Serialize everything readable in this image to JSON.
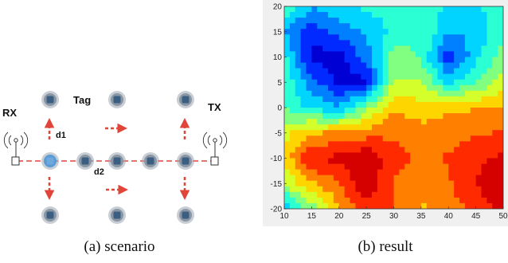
{
  "scenario": {
    "rx_label": "RX",
    "tx_label": "TX",
    "tag_label": "Tag",
    "d1_label": "d1",
    "d2_label": "d2",
    "caption": "(a) scenario",
    "colors": {
      "dash": "#e0453a",
      "tag_fill": "#3a5f82",
      "tag_halo": "#9aa5b0",
      "selected": "#5b9bd5"
    }
  },
  "result": {
    "caption": "(b) result",
    "x_ticks": [
      "10",
      "15",
      "20",
      "25",
      "30",
      "35",
      "40",
      "45",
      "50"
    ],
    "y_ticks": [
      "20",
      "15",
      "10",
      "5",
      "0",
      "-5",
      "-10",
      "-15",
      "-20"
    ],
    "colormap": "jet"
  },
  "chart_data": {
    "type": "heatmap",
    "xlim": [
      10,
      50
    ],
    "ylim": [
      -20,
      20
    ],
    "x": [
      10,
      15,
      20,
      25,
      30,
      35,
      40,
      45,
      50
    ],
    "y": [
      20,
      15,
      10,
      5,
      0,
      -5,
      -10,
      -15,
      -20
    ],
    "values": [
      [
        0.45,
        0.3,
        0.35,
        0.4,
        0.4,
        0.45,
        0.35,
        0.35,
        0.45
      ],
      [
        0.3,
        0.15,
        0.25,
        0.3,
        0.4,
        0.45,
        0.3,
        0.3,
        0.45
      ],
      [
        0.4,
        0.1,
        0.08,
        0.25,
        0.5,
        0.45,
        0.15,
        0.35,
        0.5
      ],
      [
        0.45,
        0.25,
        0.1,
        0.1,
        0.55,
        0.55,
        0.35,
        0.45,
        0.6
      ],
      [
        0.45,
        0.35,
        0.3,
        0.5,
        0.7,
        0.65,
        0.7,
        0.7,
        0.7
      ],
      [
        0.6,
        0.7,
        0.72,
        0.75,
        0.78,
        0.75,
        0.75,
        0.78,
        0.8
      ],
      [
        0.65,
        0.88,
        0.9,
        0.95,
        0.82,
        0.78,
        0.8,
        0.85,
        0.9
      ],
      [
        0.55,
        0.7,
        0.78,
        0.95,
        0.78,
        0.72,
        0.78,
        0.88,
        0.95
      ],
      [
        0.3,
        0.5,
        0.7,
        0.85,
        0.8,
        0.7,
        0.75,
        0.82,
        0.9
      ]
    ]
  }
}
